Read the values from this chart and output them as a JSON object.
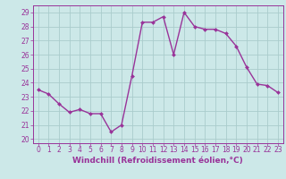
{
  "x": [
    0,
    1,
    2,
    3,
    4,
    5,
    6,
    7,
    8,
    9,
    10,
    11,
    12,
    13,
    14,
    15,
    16,
    17,
    18,
    19,
    20,
    21,
    22,
    23
  ],
  "y": [
    23.5,
    23.2,
    22.5,
    21.9,
    22.1,
    21.8,
    21.8,
    20.5,
    21.0,
    24.5,
    28.3,
    28.3,
    28.7,
    26.0,
    29.0,
    28.0,
    27.8,
    27.8,
    27.5,
    26.6,
    25.1,
    23.9,
    23.8,
    23.3
  ],
  "line_color": "#993399",
  "marker": "D",
  "marker_size": 2.0,
  "bg_color": "#cce8e8",
  "grid_color": "#aacccc",
  "xlabel": "Windchill (Refroidissement éolien,°C)",
  "xlim": [
    -0.5,
    23.5
  ],
  "ylim": [
    19.7,
    29.5
  ],
  "yticks": [
    20,
    21,
    22,
    23,
    24,
    25,
    26,
    27,
    28,
    29
  ],
  "xticks": [
    0,
    1,
    2,
    3,
    4,
    5,
    6,
    7,
    8,
    9,
    10,
    11,
    12,
    13,
    14,
    15,
    16,
    17,
    18,
    19,
    20,
    21,
    22,
    23
  ],
  "axis_color": "#993399",
  "tick_label_color": "#993399",
  "xlabel_color": "#993399",
  "line_width": 1.0,
  "tick_fontsize": 5.5,
  "xlabel_fontsize": 6.5
}
